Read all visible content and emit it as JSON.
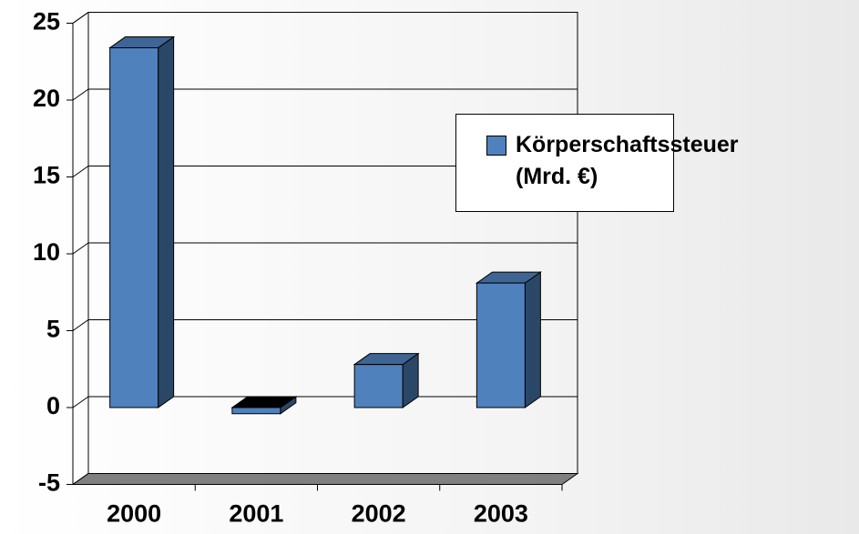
{
  "chart_data": {
    "type": "bar",
    "categories": [
      "2000",
      "2001",
      "2002",
      "2003"
    ],
    "series": [
      {
        "name": "Körperschaftssteuer (Mrd. €)",
        "color": "#4f81bd",
        "values": [
          23.4,
          -0.4,
          2.8,
          8.1
        ]
      }
    ],
    "ylim": [
      -5,
      25
    ],
    "yticks": [
      -5,
      0,
      5,
      10,
      15,
      20,
      25
    ],
    "grid": true
  }
}
